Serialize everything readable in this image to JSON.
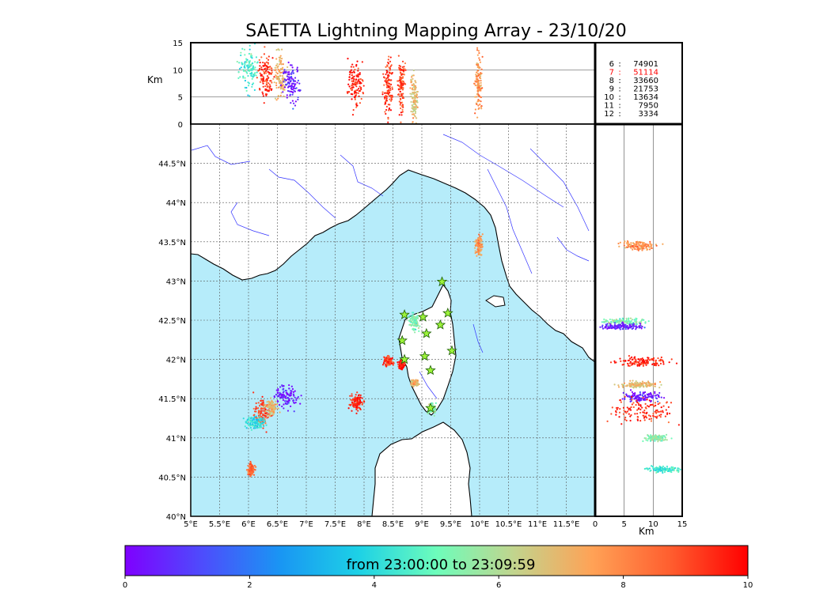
{
  "chart_data": {
    "type": "scatter",
    "title": "SAETTA Lightning Mapping Array - 23/10/20",
    "map": {
      "x_ticks": [
        "5°E",
        "5.5°E",
        "6°E",
        "6.5°E",
        "7°E",
        "7.5°E",
        "8°E",
        "8.5°E",
        "9°E",
        "9.5°E",
        "10°E",
        "10.5°E",
        "11°E",
        "11.5°E"
      ],
      "y_ticks": [
        "44.5°N",
        "44°N",
        "43.5°N",
        "43°N",
        "42.5°N",
        "42°N",
        "41.5°N",
        "41°N",
        "40.5°N",
        "40°N"
      ],
      "xlim": [
        5,
        12
      ],
      "ylim": [
        40,
        45
      ],
      "land_color": "#ffffff",
      "sea_color": "#b6ecfa",
      "river_color": "#3333ff",
      "grid": "dotted",
      "stations": [
        {
          "lon": 8.7,
          "lat": 42.57
        },
        {
          "lon": 9.02,
          "lat": 42.54
        },
        {
          "lon": 9.45,
          "lat": 42.59
        },
        {
          "lon": 9.32,
          "lat": 42.44
        },
        {
          "lon": 9.08,
          "lat": 42.33
        },
        {
          "lon": 8.66,
          "lat": 42.24
        },
        {
          "lon": 9.52,
          "lat": 42.11
        },
        {
          "lon": 8.7,
          "lat": 42.0
        },
        {
          "lon": 9.05,
          "lat": 42.04
        },
        {
          "lon": 9.15,
          "lat": 41.86
        },
        {
          "lon": 9.35,
          "lat": 42.99
        },
        {
          "lon": 9.15,
          "lat": 41.38
        }
      ],
      "flash_clusters": [
        {
          "lon": 6.65,
          "lat": 41.52,
          "slon": 0.09,
          "slat": 0.07,
          "t": 0.3
        },
        {
          "lon": 6.25,
          "lat": 41.3,
          "slon": 0.07,
          "slat": 0.1,
          "t": 9.0
        },
        {
          "lon": 6.4,
          "lat": 41.38,
          "slon": 0.05,
          "slat": 0.05,
          "t": 7.0
        },
        {
          "lon": 6.1,
          "lat": 41.2,
          "slon": 0.08,
          "slat": 0.04,
          "t": 4.0
        },
        {
          "lon": 7.88,
          "lat": 41.45,
          "slon": 0.06,
          "slat": 0.05,
          "t": 9.5
        },
        {
          "lon": 8.42,
          "lat": 41.98,
          "slon": 0.04,
          "slat": 0.03,
          "t": 9.2
        },
        {
          "lon": 8.65,
          "lat": 41.93,
          "slon": 0.03,
          "slat": 0.03,
          "t": 9.8
        },
        {
          "lon": 8.87,
          "lat": 42.48,
          "slon": 0.04,
          "slat": 0.05,
          "t": 5.3
        },
        {
          "lon": 9.99,
          "lat": 43.45,
          "slon": 0.03,
          "slat": 0.06,
          "t": 7.8
        },
        {
          "lon": 6.05,
          "lat": 40.6,
          "slon": 0.03,
          "slat": 0.04,
          "t": 8.5
        },
        {
          "lon": 8.88,
          "lat": 41.7,
          "slon": 0.03,
          "slat": 0.02,
          "t": 7.2
        },
        {
          "lon": 9.17,
          "lat": 41.37,
          "slon": 0.03,
          "slat": 0.03,
          "t": 5.5
        }
      ]
    },
    "alt_lon": {
      "y_label": "Km",
      "y_ticks": [
        "15",
        "10",
        "5",
        "0"
      ],
      "ylim": [
        0,
        15
      ],
      "legend": [
        {
          "label": "6",
          "count": "74901",
          "color": "#000000"
        },
        {
          "label": "7",
          "count": "51114",
          "color": "#ff0000"
        },
        {
          "label": "8",
          "count": "33660",
          "color": "#000000"
        },
        {
          "label": "9",
          "count": "21753",
          "color": "#000000"
        },
        {
          "label": "10",
          "count": "13634",
          "color": "#000000"
        },
        {
          "label": "11",
          "count": "7950",
          "color": "#000000"
        },
        {
          "label": "12",
          "count": "3334",
          "color": "#000000"
        }
      ],
      "clusters": [
        {
          "lon": 6.0,
          "z": 10.5,
          "slon": 0.08,
          "sz": 2.0,
          "t": 4.5
        },
        {
          "lon": 6.3,
          "z": 9.0,
          "slon": 0.06,
          "sz": 2.0,
          "t": 9.3
        },
        {
          "lon": 6.55,
          "z": 9.0,
          "slon": 0.05,
          "sz": 2.0,
          "t": 7.2
        },
        {
          "lon": 6.75,
          "z": 7.5,
          "slon": 0.07,
          "sz": 1.8,
          "t": 0.4
        },
        {
          "lon": 7.85,
          "z": 7.5,
          "slon": 0.07,
          "sz": 2.2,
          "t": 9.6
        },
        {
          "lon": 8.42,
          "z": 7.0,
          "slon": 0.04,
          "sz": 2.5,
          "t": 9.3
        },
        {
          "lon": 8.65,
          "z": 7.0,
          "slon": 0.03,
          "sz": 2.5,
          "t": 9.0
        },
        {
          "lon": 8.87,
          "z": 5.0,
          "slon": 0.03,
          "sz": 2.2,
          "t": 6.8
        },
        {
          "lon": 9.98,
          "z": 7.5,
          "slon": 0.03,
          "sz": 2.5,
          "t": 7.8
        }
      ]
    },
    "alt_lat": {
      "x_label": "Km",
      "x_ticks": [
        "0",
        "5",
        "10",
        "15"
      ],
      "xlim": [
        0,
        15
      ],
      "clusters": [
        {
          "z": 7.5,
          "lat": 43.45,
          "sz": 1.4,
          "slat": 0.03,
          "t": 7.8
        },
        {
          "z": 5.0,
          "lat": 42.48,
          "sz": 1.6,
          "slat": 0.02,
          "t": 5.3
        },
        {
          "z": 4.5,
          "lat": 42.42,
          "sz": 1.8,
          "slat": 0.02,
          "t": 0.6
        },
        {
          "z": 8.0,
          "lat": 41.97,
          "sz": 2.2,
          "slat": 0.03,
          "t": 9.6
        },
        {
          "z": 7.5,
          "lat": 41.68,
          "sz": 1.5,
          "slat": 0.02,
          "t": 7.0
        },
        {
          "z": 8.0,
          "lat": 41.52,
          "sz": 1.8,
          "slat": 0.03,
          "t": 0.4
        },
        {
          "z": 8.5,
          "lat": 41.35,
          "sz": 2.5,
          "slat": 0.08,
          "t": 9.4
        },
        {
          "z": 10.5,
          "lat": 41.0,
          "sz": 1.0,
          "slat": 0.02,
          "t": 5.5
        },
        {
          "z": 12.0,
          "lat": 40.6,
          "sz": 1.5,
          "slat": 0.02,
          "t": 4.5
        }
      ],
      "marker": {
        "z": 0,
        "lat": 42.6,
        "color": "#1010e0"
      }
    },
    "colorbar": {
      "label": "from 23:00:00 to 23:09:59",
      "ticks": [
        "0",
        "2",
        "4",
        "6",
        "8",
        "10"
      ],
      "range": [
        0,
        10
      ],
      "colors": [
        "#7f00ff",
        "#4d4dfc",
        "#1996f3",
        "#1dd1e6",
        "#6dfdbb",
        "#c2d48d",
        "#ffa256",
        "#ff5e2f",
        "#ff0000"
      ]
    }
  }
}
